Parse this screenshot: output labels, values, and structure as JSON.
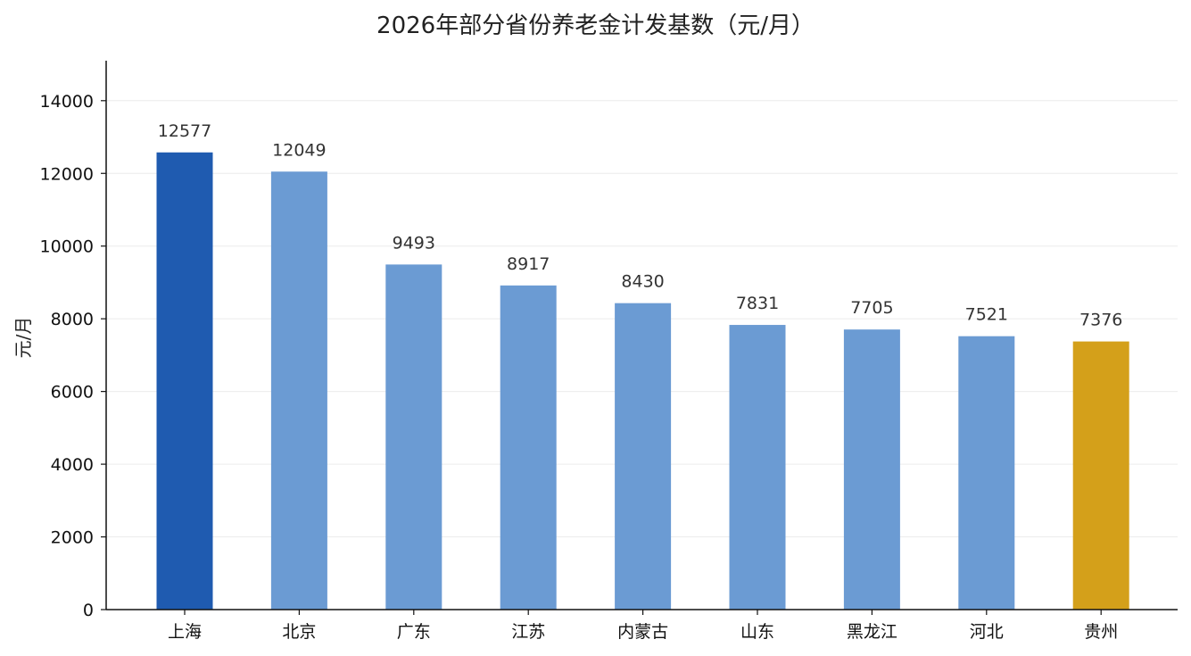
{
  "chart_data": {
    "type": "bar",
    "title": "2026年部分省份养老金计发基数（元/月）",
    "xlabel": "",
    "ylabel": "元/月",
    "categories": [
      "上海",
      "北京",
      "广东",
      "江苏",
      "内蒙古",
      "山东",
      "黑龙江",
      "河北",
      "贵州"
    ],
    "values": [
      12577,
      12049,
      9493,
      8917,
      8430,
      7831,
      7705,
      7521,
      7376
    ],
    "ylim": [
      0,
      15100
    ],
    "yticks": [
      0,
      2000,
      4000,
      6000,
      8000,
      10000,
      12000,
      14000
    ],
    "grid": true,
    "legend": "none",
    "colors": {
      "highlight_top": "#1f5bb0",
      "default": "#6b9bd3",
      "highlight_bottom": "#d4a01a",
      "axis": "#111111",
      "grid": "#ececec"
    },
    "bar_color_roles": [
      "highlight_top",
      "default",
      "default",
      "default",
      "default",
      "default",
      "default",
      "default",
      "highlight_bottom"
    ]
  }
}
